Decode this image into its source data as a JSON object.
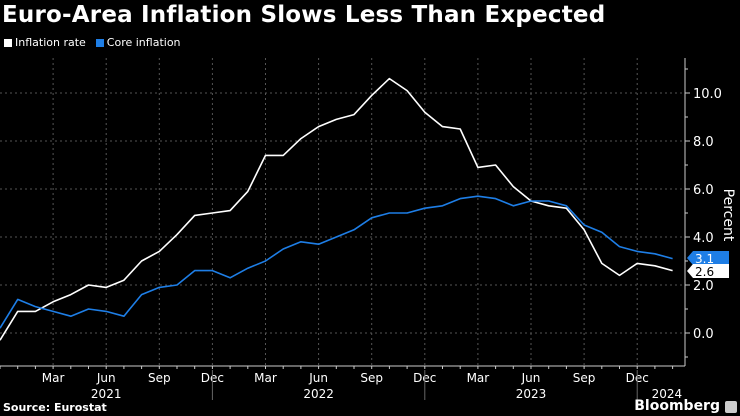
{
  "chart_data": {
    "type": "line",
    "title": "Euro-Area Inflation Slows Less Than Expected",
    "ylabel": "Percent",
    "xlabel": "",
    "ylim": [
      -1.3,
      11.5
    ],
    "yticks": [
      "0.0",
      "2.0",
      "4.0",
      "6.0",
      "8.0",
      "10.0"
    ],
    "ytick_values": [
      0,
      2,
      4,
      6,
      8,
      10
    ],
    "grid": true,
    "legend": "top-left",
    "x": [
      "2020-12",
      "2021-01",
      "2021-02",
      "2021-03",
      "2021-04",
      "2021-05",
      "2021-06",
      "2021-07",
      "2021-08",
      "2021-09",
      "2021-10",
      "2021-11",
      "2021-12",
      "2022-01",
      "2022-02",
      "2022-03",
      "2022-04",
      "2022-05",
      "2022-06",
      "2022-07",
      "2022-08",
      "2022-09",
      "2022-10",
      "2022-11",
      "2022-12",
      "2023-01",
      "2023-02",
      "2023-03",
      "2023-04",
      "2023-05",
      "2023-06",
      "2023-07",
      "2023-08",
      "2023-09",
      "2023-10",
      "2023-11",
      "2023-12",
      "2024-01",
      "2024-02"
    ],
    "month_ticks": [
      {
        "label": "Mar",
        "month": "2021-03"
      },
      {
        "label": "Jun",
        "month": "2021-06"
      },
      {
        "label": "Sep",
        "month": "2021-09"
      },
      {
        "label": "Dec",
        "month": "2021-12"
      },
      {
        "label": "Mar",
        "month": "2022-03"
      },
      {
        "label": "Jun",
        "month": "2022-06"
      },
      {
        "label": "Sep",
        "month": "2022-09"
      },
      {
        "label": "Dec",
        "month": "2022-12"
      },
      {
        "label": "Mar",
        "month": "2023-03"
      },
      {
        "label": "Jun",
        "month": "2023-06"
      },
      {
        "label": "Sep",
        "month": "2023-09"
      },
      {
        "label": "Dec",
        "month": "2023-12"
      }
    ],
    "year_ticks": [
      {
        "label": "2021",
        "month": "2021-06"
      },
      {
        "label": "2022",
        "month": "2022-06"
      },
      {
        "label": "2023",
        "month": "2023-06"
      },
      {
        "label": "2024",
        "month": "2024-01"
      }
    ],
    "series": [
      {
        "name": "Inflation rate",
        "color": "#ffffff",
        "last_label": "2.6",
        "values": [
          -0.3,
          0.9,
          0.9,
          1.3,
          1.6,
          2.0,
          1.9,
          2.2,
          3.0,
          3.4,
          4.1,
          4.9,
          5.0,
          5.1,
          5.9,
          7.4,
          7.4,
          8.1,
          8.6,
          8.9,
          9.1,
          9.9,
          10.6,
          10.1,
          9.2,
          8.6,
          8.5,
          6.9,
          7.0,
          6.1,
          5.5,
          5.3,
          5.2,
          4.3,
          2.9,
          2.4,
          2.9,
          2.8,
          2.6
        ]
      },
      {
        "name": "Core inflation",
        "color": "#1e7ee6",
        "last_label": "3.1",
        "values": [
          0.2,
          1.4,
          1.1,
          0.9,
          0.7,
          1.0,
          0.9,
          0.7,
          1.6,
          1.9,
          2.0,
          2.6,
          2.6,
          2.3,
          2.7,
          3.0,
          3.5,
          3.8,
          3.7,
          4.0,
          4.3,
          4.8,
          5.0,
          5.0,
          5.2,
          5.3,
          5.6,
          5.7,
          5.6,
          5.3,
          5.5,
          5.5,
          5.3,
          4.5,
          4.2,
          3.6,
          3.4,
          3.3,
          3.1
        ]
      }
    ]
  },
  "footer": {
    "source": "Source: Eurostat",
    "brand": "Bloomberg"
  }
}
